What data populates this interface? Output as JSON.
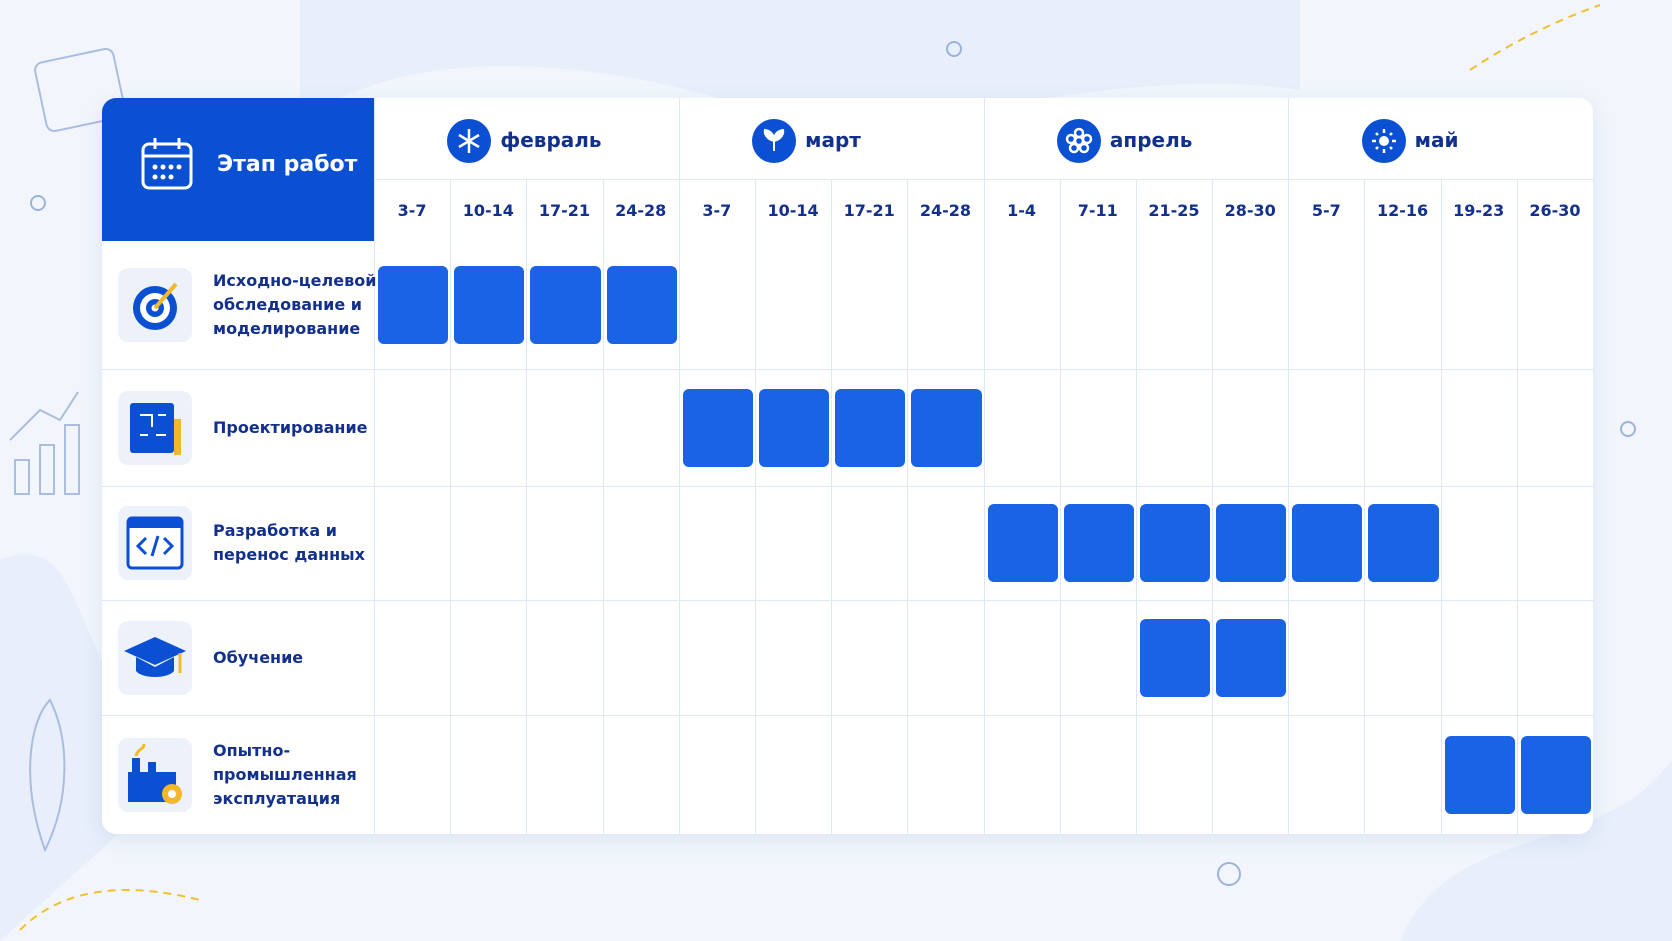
{
  "schedule": {
    "header": "Этап работ",
    "months": [
      {
        "name": "февраль",
        "weeks": [
          "3-7",
          "10-14",
          "17-21",
          "24-28"
        ]
      },
      {
        "name": "март",
        "weeks": [
          "3-7",
          "10-14",
          "17-21",
          "24-28"
        ]
      },
      {
        "name": "апрель",
        "weeks": [
          "1-4",
          "7-11",
          "21-25",
          "28-30"
        ]
      },
      {
        "name": "май",
        "weeks": [
          "5-7",
          "12-16",
          "19-23",
          "26-30"
        ]
      }
    ],
    "tasks": [
      {
        "label": [
          "Исходно-целевой:",
          "обследование и",
          "моделирование"
        ],
        "start": 0,
        "end": 3
      },
      {
        "label": [
          "Проектирование"
        ],
        "start": 4,
        "end": 7
      },
      {
        "label": [
          "Разработка и",
          "перенос данных"
        ],
        "start": 8,
        "end": 13
      },
      {
        "label": [
          "Обучение"
        ],
        "start": 10,
        "end": 11
      },
      {
        "label": [
          "Опытно-",
          "промышленная",
          "эксплуатация"
        ],
        "start": 14,
        "end": 15
      }
    ]
  }
}
